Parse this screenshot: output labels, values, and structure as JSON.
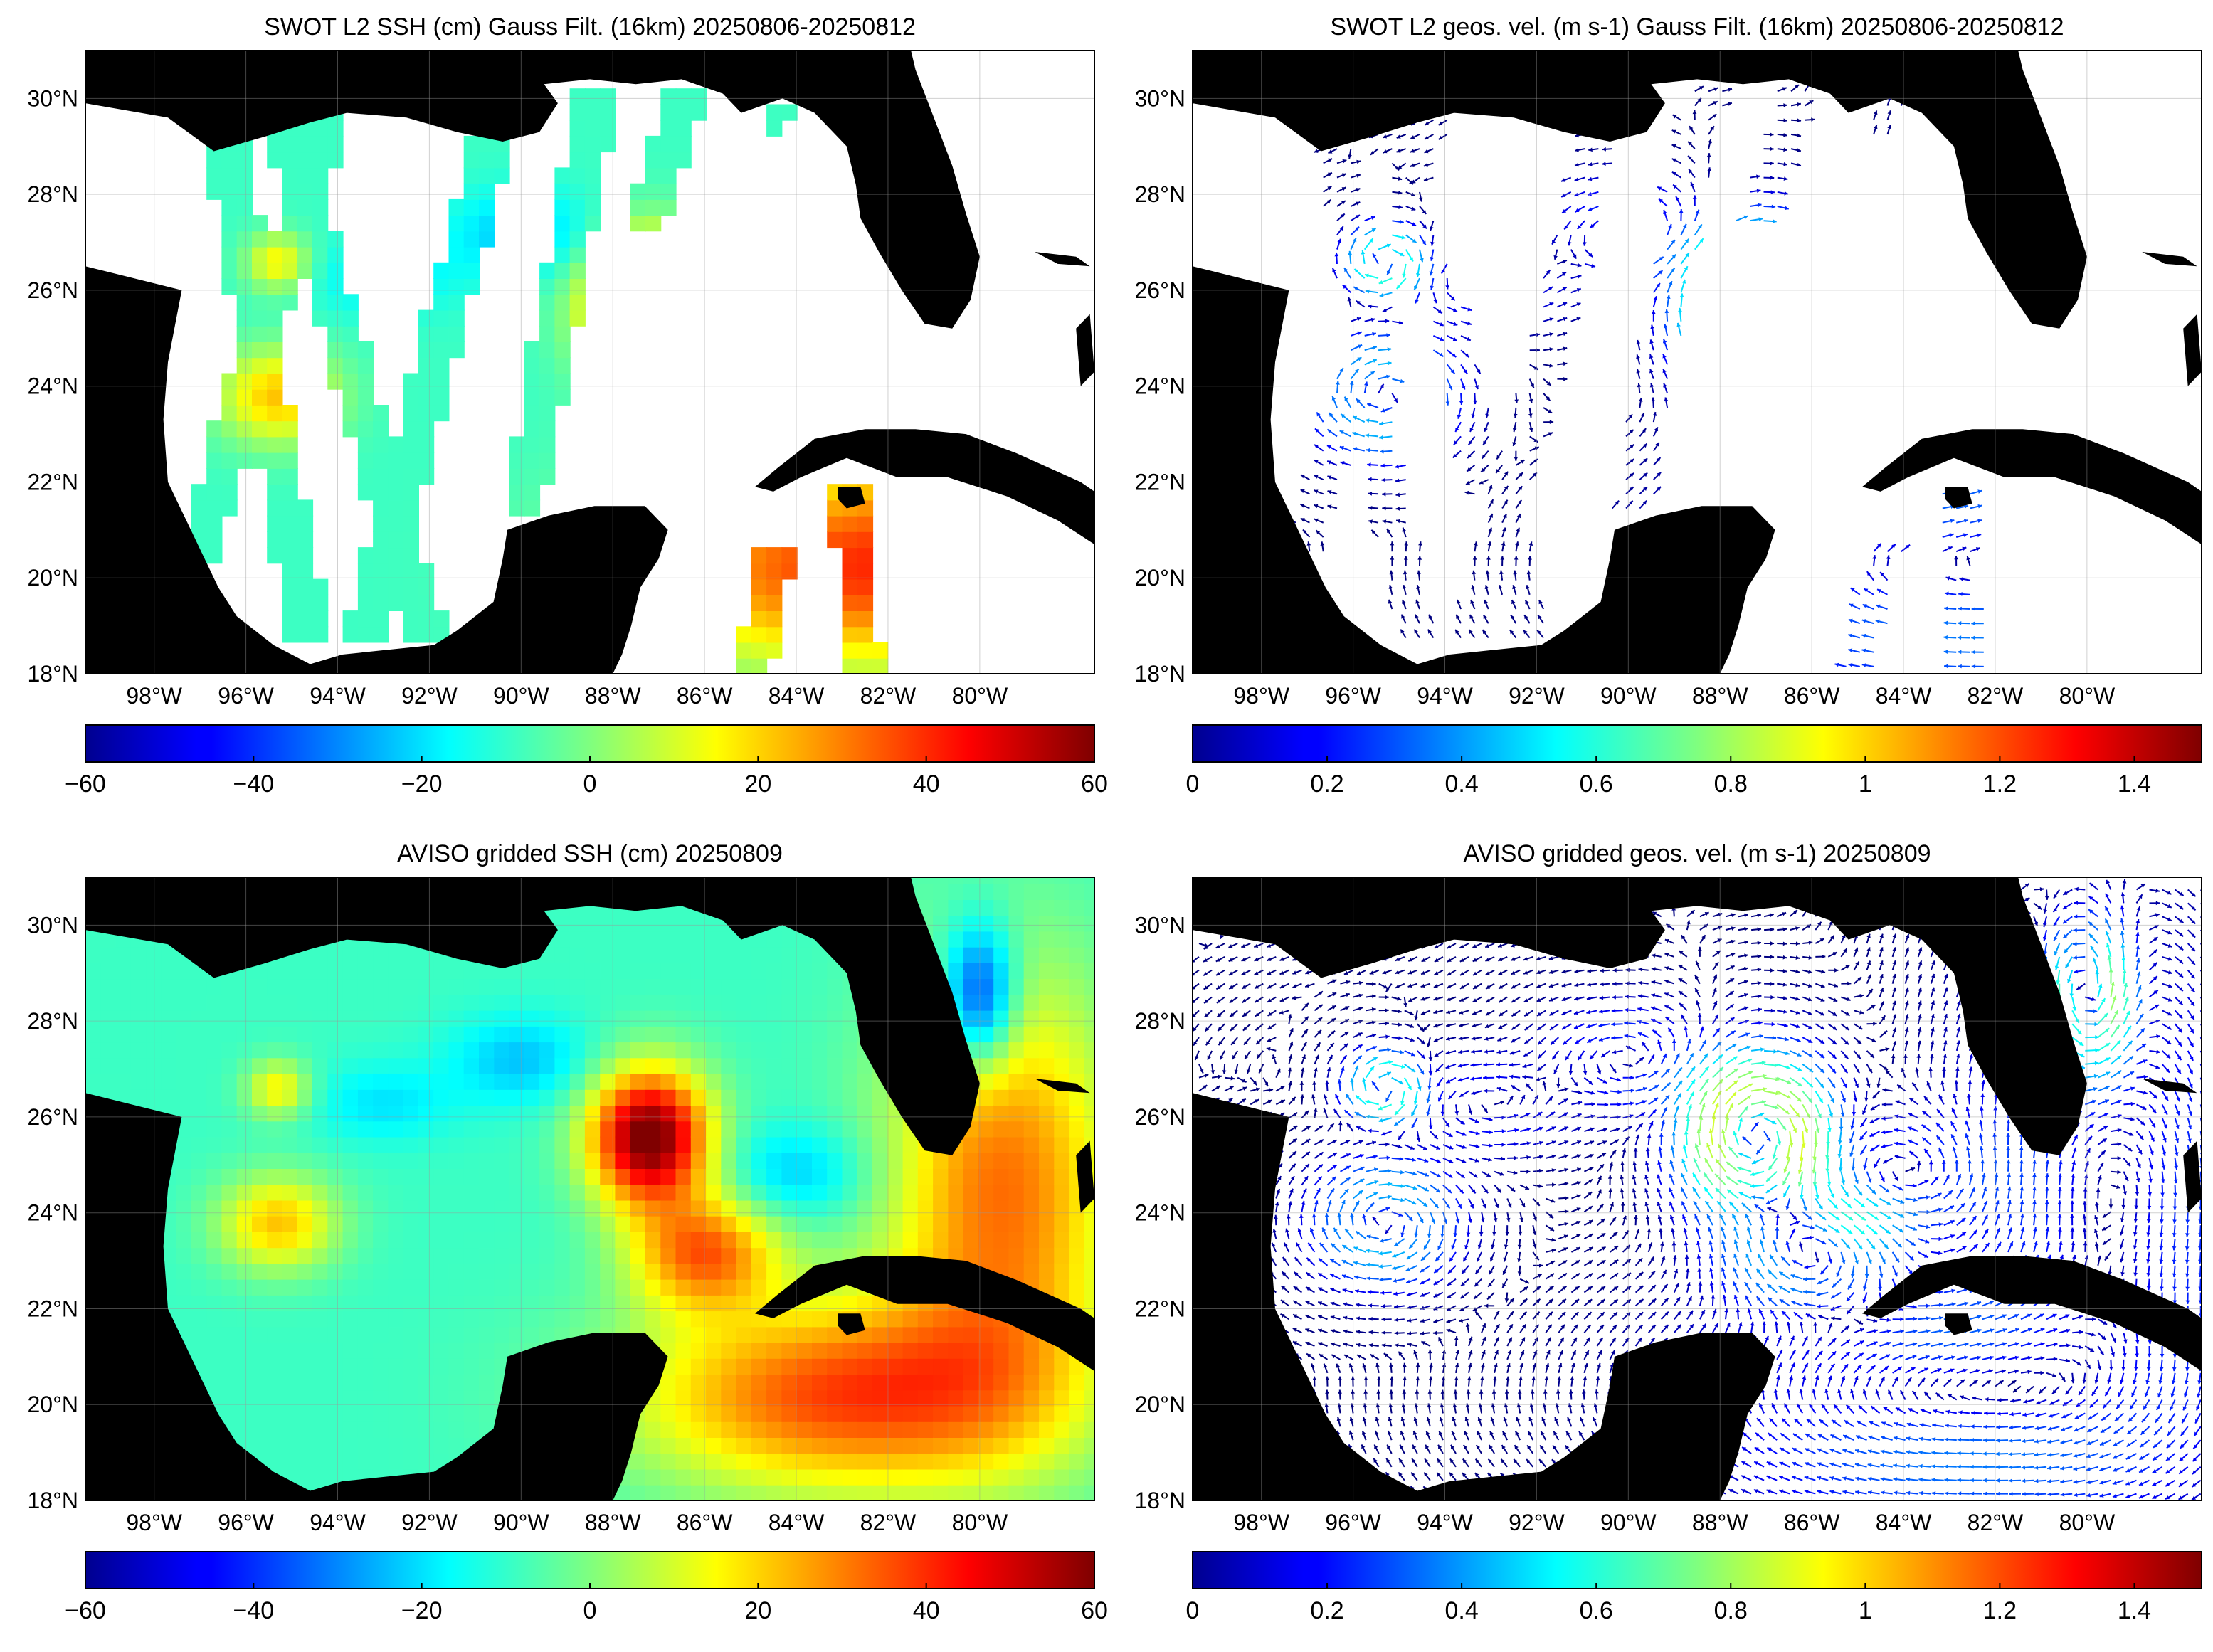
{
  "figure": {
    "panels": [
      {
        "id": "swot-ssh",
        "title": "SWOT L2 SSH (cm) Gauss Filt. (16km) 20250806-20250812",
        "kind": "field",
        "variable": "SSH",
        "unit": "cm",
        "colorbar": {
          "min": -60,
          "max": 60,
          "ticks": [
            "−60",
            "−40",
            "−20",
            "0",
            "20",
            "40",
            "60"
          ]
        },
        "source": "SWOT swaths"
      },
      {
        "id": "swot-vel",
        "title": "SWOT L2 geos. vel. (m s-1) Gauss Filt. (16km) 20250806-20250812",
        "kind": "vectors",
        "variable": "geostrophic velocity",
        "unit": "m s-1",
        "colorbar": {
          "min": 0,
          "max": 1.5,
          "ticks": [
            "0",
            "0.2",
            "0.4",
            "0.6",
            "0.8",
            "1",
            "1.2",
            "1.4"
          ]
        },
        "source": "SWOT swaths"
      },
      {
        "id": "aviso-ssh",
        "title": "AVISO gridded SSH (cm) 20250809",
        "kind": "field",
        "variable": "SSH",
        "unit": "cm",
        "colorbar": {
          "min": -60,
          "max": 60,
          "ticks": [
            "−60",
            "−40",
            "−20",
            "0",
            "20",
            "40",
            "60"
          ]
        },
        "source": "gridded"
      },
      {
        "id": "aviso-vel",
        "title": "AVISO gridded geos. vel. (m s-1)  20250809",
        "kind": "vectors",
        "variable": "geostrophic velocity",
        "unit": "m s-1",
        "colorbar": {
          "min": 0,
          "max": 1.5,
          "ticks": [
            "0",
            "0.2",
            "0.4",
            "0.6",
            "0.8",
            "1",
            "1.2",
            "1.4"
          ]
        },
        "source": "gridded"
      }
    ],
    "map": {
      "lon_range": [
        -99.5,
        -77.5
      ],
      "lat_range": [
        18,
        31
      ],
      "lon_ticks": [
        -98,
        -96,
        -94,
        -92,
        -90,
        -88,
        -86,
        -84,
        -82,
        -80
      ],
      "lon_labels": [
        "98°W",
        "96°W",
        "94°W",
        "92°W",
        "90°W",
        "88°W",
        "86°W",
        "84°W",
        "82°W",
        "80°W"
      ],
      "lat_ticks": [
        18,
        20,
        22,
        24,
        26,
        28,
        30
      ],
      "lat_labels": [
        "18°N",
        "20°N",
        "22°N",
        "24°N",
        "26°N",
        "28°N",
        "30°N"
      ],
      "grid": true,
      "land_color": "#000000",
      "colormap": "jet"
    }
  }
}
